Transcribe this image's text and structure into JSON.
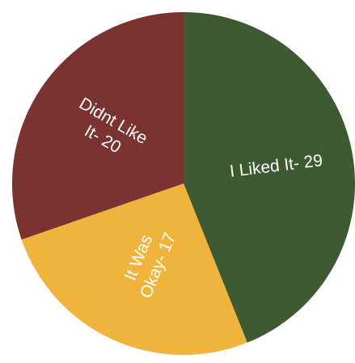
{
  "chart_data": {
    "type": "pie",
    "title": "",
    "slices": [
      {
        "label": "I Liked It- 29",
        "value": 29,
        "color": "#3d5a33"
      },
      {
        "label": "It Was Okay- 17",
        "lines": [
          "It Was",
          "Okay- 17"
        ],
        "value": 17,
        "color": "#f0b43c"
      },
      {
        "label": "Didnt Like It- 20",
        "lines": [
          "Didnt Like",
          "It- 20"
        ],
        "value": 20,
        "color": "#7b3331"
      }
    ],
    "legend": "none",
    "labels": "inside"
  }
}
